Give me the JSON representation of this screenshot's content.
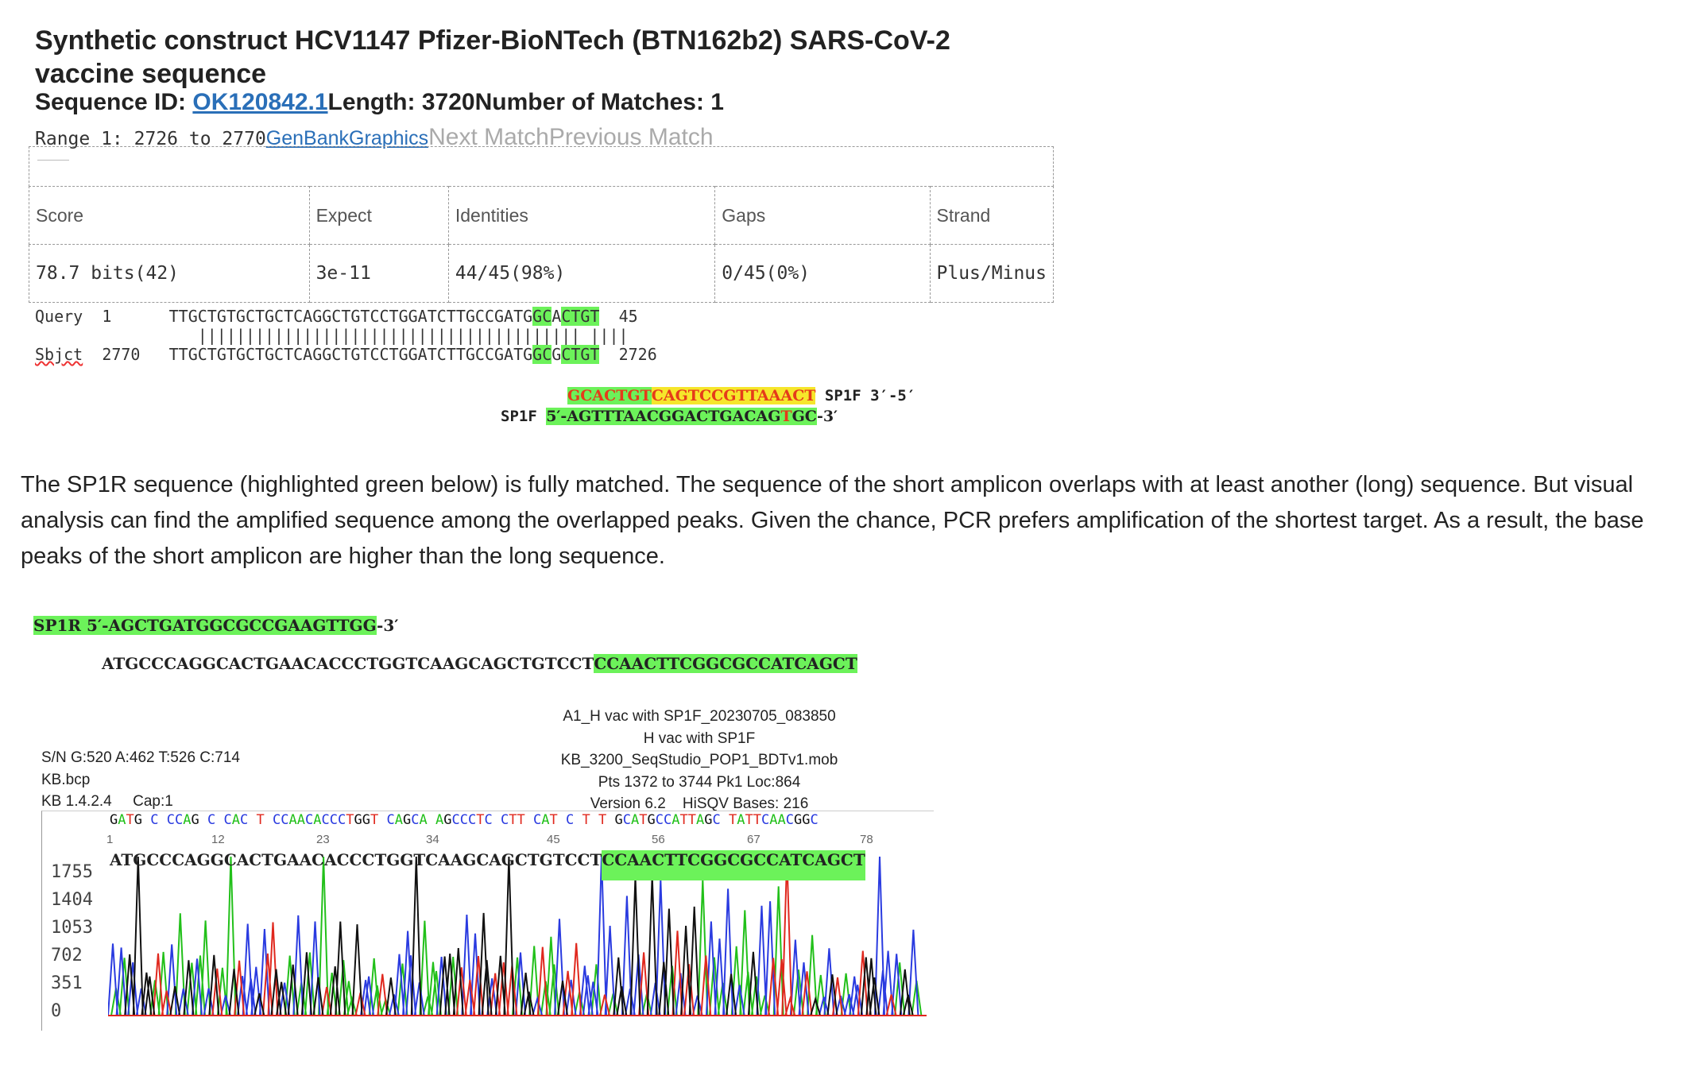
{
  "header": {
    "title": "Synthetic construct HCV1147 Pfizer-BioNTech (BTN162b2) SARS-CoV-2 vaccine sequence",
    "seqid_label": "Sequence ID: ",
    "seqid_link": "OK120842.1",
    "length_text": "Length: 3720",
    "matches_text": "Number of Matches: 1",
    "range_text": "Range 1: 2726 to 2770",
    "genbank_link": "GenBank",
    "graphics_link": "Graphics",
    "next_match": "Next Match",
    "previous_match": "Previous Match"
  },
  "stats": {
    "headers": [
      "Score",
      "Expect",
      "Identities",
      "Gaps",
      "Strand"
    ],
    "values": [
      "78.7 bits(42)",
      "3e-11",
      "44/45(98%)",
      "0/45(0%)",
      "Plus/Minus"
    ]
  },
  "alignment": {
    "query_label": "Query",
    "query_start": "1",
    "query_seq_a": "TTGCTGTGCTGCTCAGGCTGTCCTGGATCTTGCCGATG",
    "query_seq_hl1": "GC",
    "query_seq_mid": "A",
    "query_seq_hl2": "CTGT",
    "query_end": "45",
    "match_bars": "|||||||||||||||||||||||||||||||||||||||| ||||",
    "sbjct_label": "Sbjct",
    "sbjct_start": "2770",
    "sbjct_seq_a": "TTGCTGTGCTGCTCAGGCTGTCCTGGATCTTGCCGATG",
    "sbjct_seq_hl1": "GC",
    "sbjct_seq_mid": "G",
    "sbjct_seq_hl2": "CTGT",
    "sbjct_end": "2726"
  },
  "primers": {
    "rev_green_red": "GCACTGT",
    "rev_yellow": "CAGTCCGTTAAACT",
    "rev_label": " SP1F 3′-5′",
    "fwd_label": "SP1F ",
    "fwd_seq_a": "5′-AGTTTAACGGACTGACAG",
    "fwd_seq_red": "T",
    "fwd_seq_b": "GC",
    "fwd_tail": "-3′"
  },
  "paragraph": "The SP1R sequence (highlighted green below) is fully matched. The sequence of the short amplicon overlaps with at least another (long) sequence. But visual analysis can find the amplified sequence among the overlapped peaks. Given the chance, PCR prefers amplification of the shortest target. As a result, the base peaks of the short amplicon are higher than the long sequence.",
  "sp1r": {
    "primer_hl": "SP1R 5′-AGCTGATGGCGCCGAAGTTGG",
    "primer_tail": "-3′",
    "seq_plain": "ATGCCCAGGCACTGAACACCCTGGTCAAGCAGCTGTCCT",
    "seq_hl": "CCAACTTCGGCGCCATCAGCT"
  },
  "chromatogram": {
    "center_lines": [
      "A1_H vac with SP1F_20230705_083850",
      "H vac with SP1F",
      "KB_3200_SeqStudio_POP1_BDTv1.mob",
      "Pts 1372 to 3744 Pk1 Loc:864",
      "Version 6.2    HiSQV Bases: 216"
    ],
    "left_lines": [
      "S/N G:520 A:462 T:526 C:714",
      "KB.bcp",
      "KB 1.4.2.4     Cap:1"
    ],
    "base_ruler": "GATG C CCAG C CAC T CCAACACCCTGGT CAGCA AGCCCTC CTT CAT C T T GCATGCCATTAGC TATTCAACGGC",
    "ticks": [
      "1",
      "12",
      "23",
      "34",
      "45",
      "56",
      "67",
      "78"
    ],
    "y_ticks": [
      "1755",
      "1404",
      "1053",
      "702",
      "351",
      "0"
    ],
    "overlay_plain": "ATGCCCAGGCACTGAACACCCTGGTCAAGCAGCTGTCCT",
    "overlay_hl": "CCAACTTCGGCGCCATCAGCT",
    "colors": {
      "A": "#22c01a",
      "C": "#2a3be0",
      "G": "#111111",
      "T": "#e0281e",
      "highlight": "#6cf25a"
    }
  }
}
